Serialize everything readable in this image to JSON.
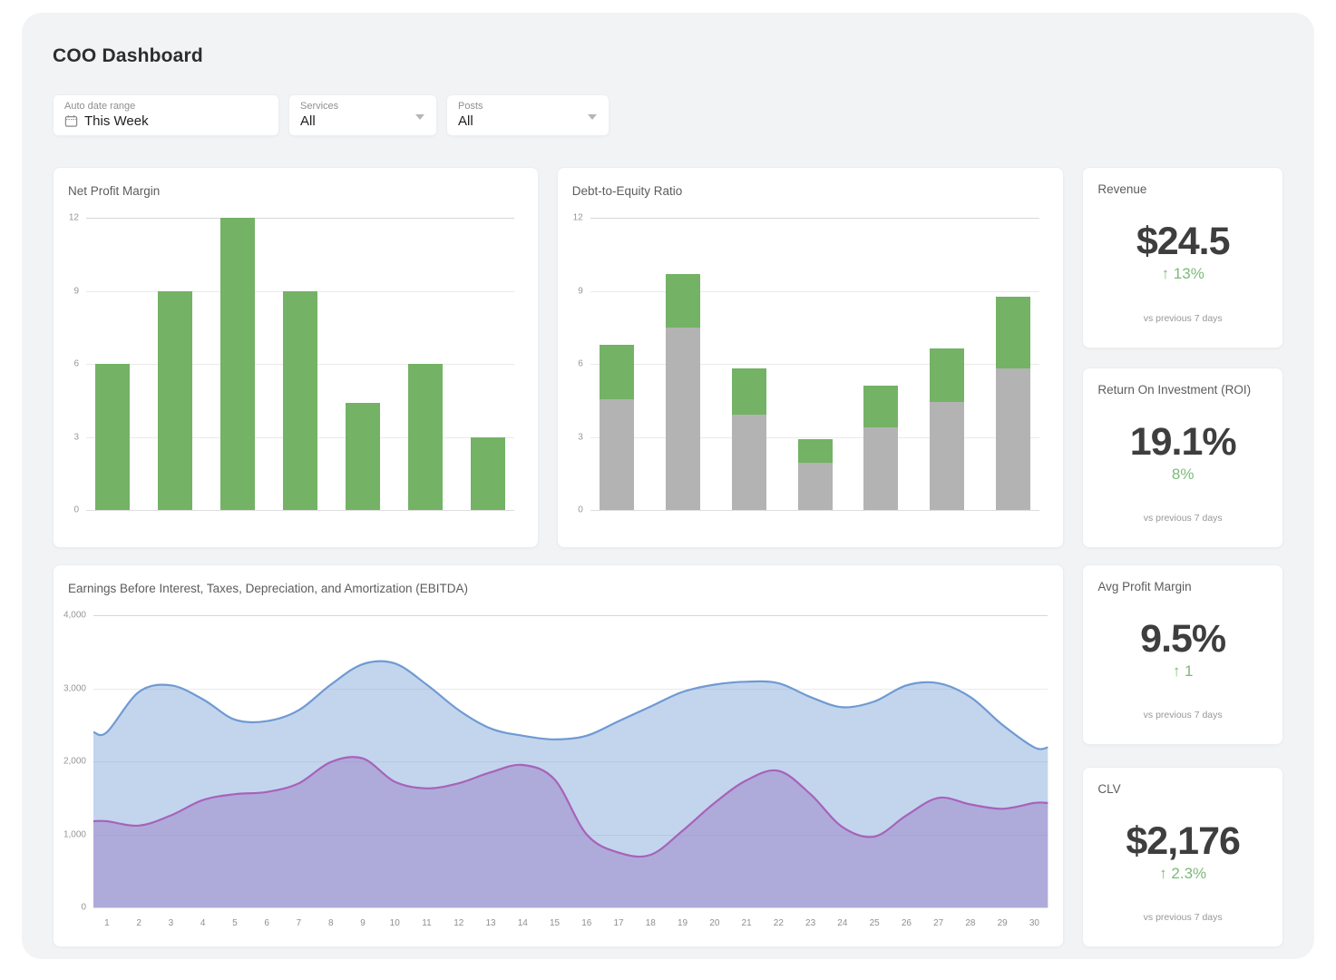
{
  "page": {
    "title": "COO Dashboard"
  },
  "filters": {
    "date_range": {
      "label": "Auto date range",
      "value": "This Week"
    },
    "services": {
      "label": "Services",
      "value": "All"
    },
    "posts": {
      "label": "Posts",
      "value": "All"
    }
  },
  "kpis": [
    {
      "title": "Revenue",
      "value": "$24.5",
      "delta": "↑ 13%",
      "note": "vs previous 7 days"
    },
    {
      "title": "Return On Investment (ROI)",
      "value": "19.1%",
      "delta": "8%",
      "note": "vs previous 7 days"
    },
    {
      "title": "Avg Profit Margin",
      "value": "9.5%",
      "delta": "↑ 1",
      "note": "vs previous 7 days"
    },
    {
      "title": "CLV",
      "value": "$2,176",
      "delta": "↑ 2.3%",
      "note": "vs previous 7 days"
    }
  ],
  "colors": {
    "panel_bg": "#f2f3f5",
    "card_bg": "#ffffff",
    "bar_green": "#74b266",
    "bar_gray": "#b3b3b3",
    "area_blue_line": "#6f9ad3",
    "area_blue_fill": "rgba(111,154,211,0.42)",
    "area_purple_line": "#a763ba",
    "area_purple_fill": "rgba(153,129,200,0.5)",
    "delta_green": "#7cbb77"
  },
  "chart_data": [
    {
      "type": "bar",
      "title": "Net Profit Margin",
      "values": [
        6,
        9,
        12,
        9,
        4.4,
        6,
        3
      ],
      "ymax": 12,
      "yticks": [
        0,
        3,
        6,
        9,
        12
      ],
      "ytick_labels": [
        "0",
        "3",
        "6",
        "9",
        "12"
      ],
      "grid": true,
      "legend": false,
      "color": "#74b266"
    },
    {
      "type": "stacked-bar",
      "title": "Debt-to-Equity Ratio",
      "ymax": 12,
      "yticks": [
        0,
        3,
        6,
        9,
        12
      ],
      "ytick_labels": [
        "0",
        "3",
        "6",
        "9",
        "12"
      ],
      "grid": true,
      "legend": false,
      "series": [
        {
          "color": "#b3b3b3",
          "values": [
            4.55,
            7.5,
            3.9,
            1.95,
            3.4,
            4.45,
            5.8
          ]
        },
        {
          "color": "#74b266",
          "values": [
            2.25,
            2.2,
            1.9,
            0.95,
            1.7,
            2.2,
            2.95
          ]
        }
      ]
    },
    {
      "type": "area",
      "title": "Earnings Before Interest, Taxes, Depreciation, and Amortization (EBITDA)",
      "x": [
        1,
        2,
        3,
        4,
        5,
        6,
        7,
        8,
        9,
        10,
        11,
        12,
        13,
        14,
        15,
        16,
        17,
        18,
        19,
        20,
        21,
        22,
        23,
        24,
        25,
        26,
        27,
        28,
        29,
        30
      ],
      "x_labels": [
        "1",
        "2",
        "3",
        "4",
        "5",
        "6",
        "7",
        "8",
        "9",
        "10",
        "11",
        "12",
        "13",
        "14",
        "15",
        "16",
        "17",
        "18",
        "19",
        "20",
        "21",
        "22",
        "23",
        "24",
        "25",
        "26",
        "27",
        "28",
        "29",
        "30"
      ],
      "ymax": 4000,
      "yticks": [
        0,
        1000,
        2000,
        3000,
        4000
      ],
      "ytick_labels": [
        "0",
        "1,000",
        "2,000",
        "3,000",
        "4,000"
      ],
      "grid": true,
      "legend": false,
      "series": [
        {
          "line": "#6f9ad3",
          "fill": "rgba(111,154,211,0.42)",
          "values": [
            2400,
            2950,
            3040,
            2850,
            2570,
            2550,
            2700,
            3050,
            3330,
            3340,
            3050,
            2700,
            2450,
            2350,
            2300,
            2350,
            2550,
            2750,
            2950,
            3050,
            3090,
            3070,
            2880,
            2740,
            2820,
            3040,
            3070,
            2880,
            2500,
            2190
          ]
        },
        {
          "line": "#a763ba",
          "fill": "rgba(153,129,200,0.5)",
          "values": [
            1180,
            1120,
            1260,
            1470,
            1550,
            1580,
            1700,
            1990,
            2040,
            1720,
            1630,
            1700,
            1850,
            1950,
            1750,
            1000,
            750,
            720,
            1050,
            1430,
            1740,
            1870,
            1550,
            1100,
            970,
            1260,
            1500,
            1410,
            1350,
            1430
          ]
        }
      ]
    }
  ]
}
